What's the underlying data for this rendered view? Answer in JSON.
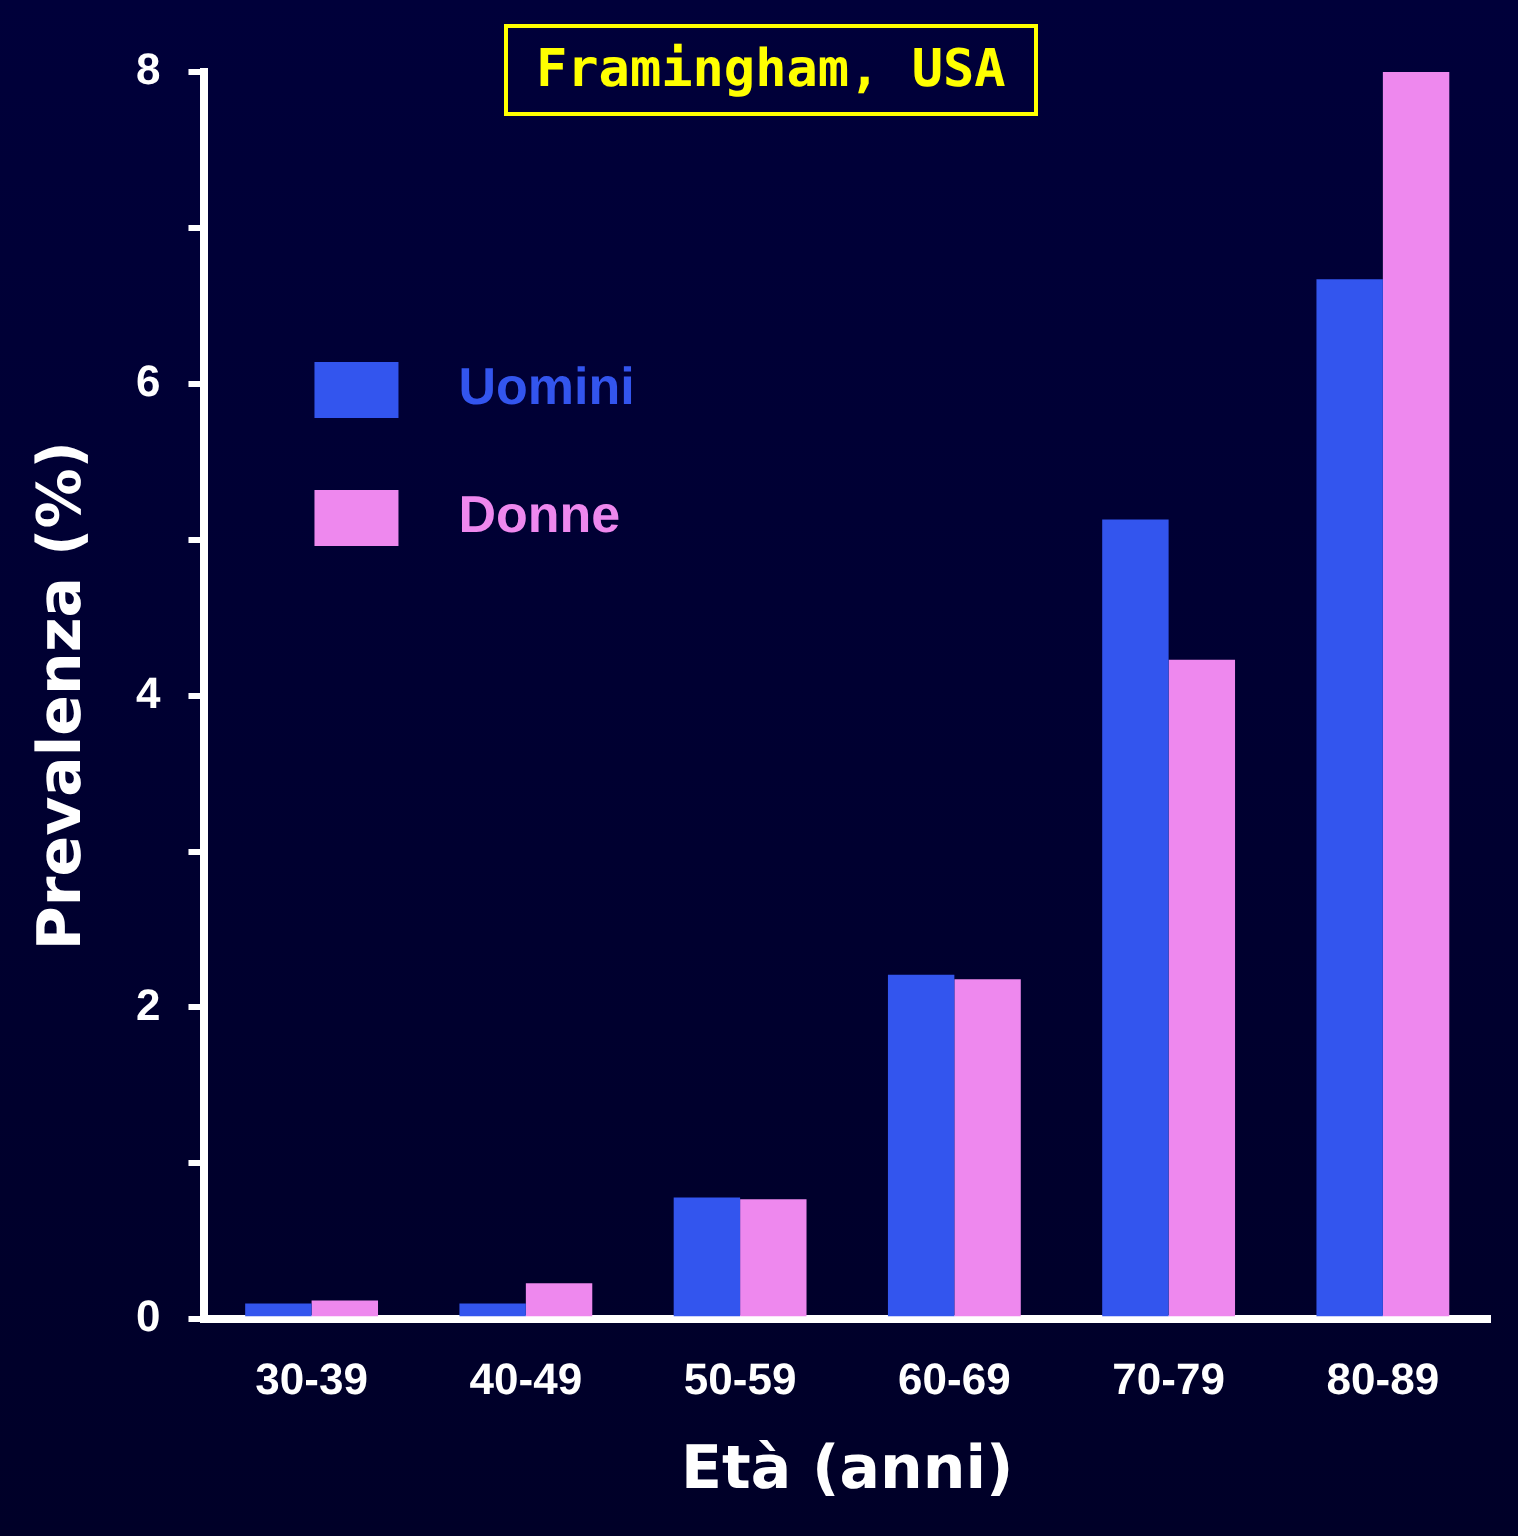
{
  "chart_data": {
    "type": "bar",
    "title": "Framingham, USA",
    "xlabel": "Età (anni)",
    "ylabel": "Prevalenza (%)",
    "categories": [
      "30-39",
      "40-49",
      "50-59",
      "60-69",
      "70-79",
      "80-89"
    ],
    "series": [
      {
        "name": "Uomini",
        "color": "#3355ee",
        "values": [
          0.1,
          0.1,
          0.78,
          2.21,
          5.13,
          6.67
        ]
      },
      {
        "name": "Donne",
        "color": "#ee88ee",
        "values": [
          0.12,
          0.23,
          0.77,
          2.18,
          4.23,
          8.0
        ]
      }
    ],
    "ylim": [
      0,
      8
    ],
    "yticks": [
      0,
      {
        "value": 1,
        "label": null
      },
      2,
      {
        "value": 3,
        "label": null
      },
      4,
      {
        "value": 5,
        "label": null
      },
      6,
      {
        "value": 7,
        "label": null
      },
      8
    ],
    "grid": false,
    "legend": "top left"
  }
}
